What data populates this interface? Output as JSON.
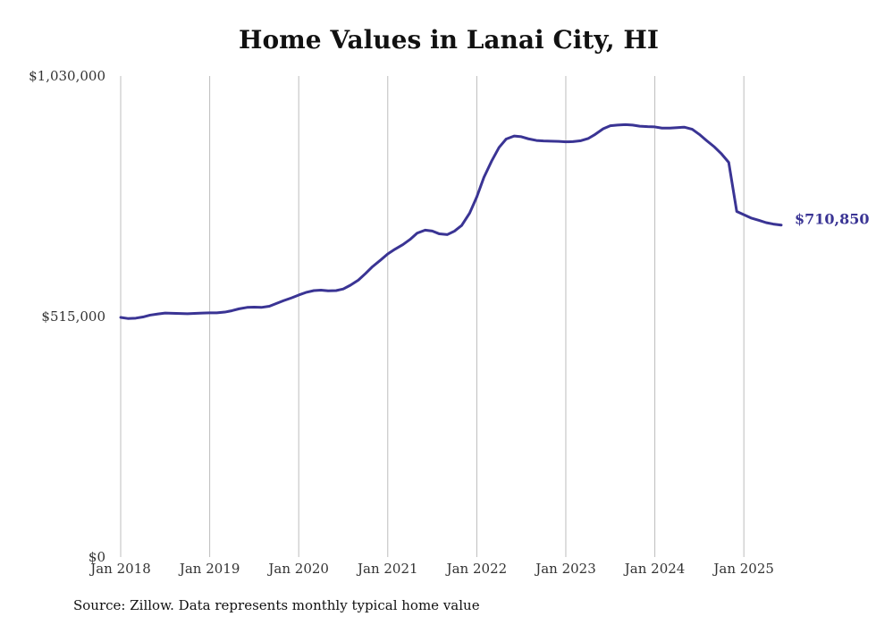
{
  "chart_data": {
    "type": "line",
    "title": "Home Values in Lanai City, HI",
    "source_note": "Source: Zillow. Data represents monthly typical home value",
    "xlabel": "",
    "ylabel": "",
    "ylim": [
      0,
      1030000
    ],
    "y_ticks": [
      {
        "value": 0,
        "label": "$0"
      },
      {
        "value": 515000,
        "label": "$515,000"
      },
      {
        "value": 1030000,
        "label": "$1,030,000"
      }
    ],
    "x_ticks": [
      {
        "value": 2018,
        "label": "Jan 2018"
      },
      {
        "value": 2019,
        "label": "Jan 2019"
      },
      {
        "value": 2020,
        "label": "Jan 2020"
      },
      {
        "value": 2021,
        "label": "Jan 2021"
      },
      {
        "value": 2022,
        "label": "Jan 2022"
      },
      {
        "value": 2023,
        "label": "Jan 2023"
      },
      {
        "value": 2024,
        "label": "Jan 2024"
      },
      {
        "value": 2025,
        "label": "Jan 2025"
      }
    ],
    "xlim": [
      2018,
      2025.42
    ],
    "grid": "vertical",
    "line_color": "#3a3494",
    "end_label": "$710,850",
    "series": [
      {
        "name": "Home value",
        "x": [
          2018.0,
          2018.08,
          2018.17,
          2018.25,
          2018.33,
          2018.42,
          2018.5,
          2018.58,
          2018.67,
          2018.75,
          2018.83,
          2018.92,
          2019.0,
          2019.08,
          2019.17,
          2019.25,
          2019.33,
          2019.42,
          2019.5,
          2019.58,
          2019.67,
          2019.75,
          2019.83,
          2019.92,
          2020.0,
          2020.08,
          2020.17,
          2020.25,
          2020.33,
          2020.42,
          2020.5,
          2020.58,
          2020.67,
          2020.75,
          2020.83,
          2020.92,
          2021.0,
          2021.08,
          2021.17,
          2021.25,
          2021.33,
          2021.42,
          2021.5,
          2021.58,
          2021.67,
          2021.75,
          2021.83,
          2021.92,
          2022.0,
          2022.08,
          2022.17,
          2022.25,
          2022.33,
          2022.42,
          2022.5,
          2022.58,
          2022.67,
          2022.75,
          2022.83,
          2022.92,
          2023.0,
          2023.08,
          2023.17,
          2023.25,
          2023.33,
          2023.42,
          2023.5,
          2023.58,
          2023.67,
          2023.75,
          2023.83,
          2023.92,
          2024.0,
          2024.08,
          2024.17,
          2024.25,
          2024.33,
          2024.42,
          2024.5,
          2024.58,
          2024.67,
          2024.75,
          2024.83,
          2024.92,
          2025.0,
          2025.08,
          2025.17,
          2025.25,
          2025.33,
          2025.42
        ],
        "values": [
          513000,
          510800,
          511500,
          514000,
          518000,
          520500,
          522500,
          522000,
          521500,
          521000,
          521800,
          522500,
          523000,
          522800,
          524500,
          527500,
          531500,
          534500,
          535000,
          534500,
          537000,
          543000,
          549000,
          555000,
          561000,
          566500,
          570500,
          571500,
          570000,
          570500,
          574000,
          582000,
          593000,
          607000,
          622000,
          636000,
          649000,
          659000,
          669000,
          680000,
          693500,
          700000,
          698000,
          692000,
          690500,
          698000,
          710000,
          736500,
          771000,
          813000,
          849000,
          877000,
          895000,
          901500,
          900000,
          895500,
          892000,
          891000,
          890500,
          890000,
          889000,
          889500,
          891500,
          896000,
          905000,
          917000,
          923500,
          925000,
          926000,
          925000,
          922500,
          921500,
          921000,
          918500,
          918500,
          919500,
          920500,
          916000,
          905000,
          892000,
          878000,
          863000,
          845000,
          740000,
          733000,
          726000,
          721000,
          716000,
          713000,
          710850
        ]
      }
    ]
  }
}
